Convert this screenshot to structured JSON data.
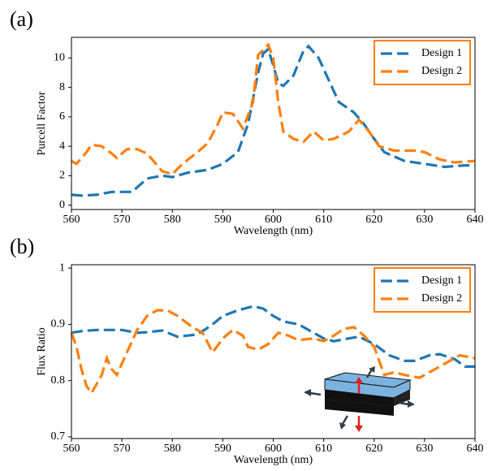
{
  "chart_data": [
    {
      "type": "line",
      "panel_label": "(a)",
      "x_label": "Wavelength (nm)",
      "y_label": "Purcell Factor",
      "xlim": [
        560,
        640
      ],
      "xticks": [
        560,
        570,
        580,
        590,
        600,
        610,
        620,
        630,
        640
      ],
      "ylim": [
        -0.3,
        11.4
      ],
      "yticks": [
        0,
        2,
        4,
        6,
        8,
        10
      ],
      "legend": "upper right",
      "series": [
        {
          "name": "Design 1",
          "color": "#1f77b4",
          "x": [
            560,
            562,
            565,
            568,
            572,
            575,
            578,
            580,
            583,
            587,
            590,
            593,
            595,
            597,
            598,
            599,
            600,
            601,
            602,
            604,
            606,
            607,
            609,
            611,
            613,
            616,
            618,
            620,
            622,
            626,
            630,
            634,
            638,
            640
          ],
          "values": [
            0.7,
            0.65,
            0.7,
            0.9,
            0.9,
            1.8,
            2.0,
            1.9,
            2.2,
            2.4,
            2.8,
            3.6,
            5.5,
            9,
            10.3,
            10.6,
            9.5,
            8.3,
            8.1,
            8.8,
            10.5,
            10.8,
            10,
            8.5,
            7,
            6.3,
            5.5,
            4.5,
            3.6,
            3.0,
            2.8,
            2.6,
            2.7,
            2.7
          ]
        },
        {
          "name": "Design 2",
          "color": "#ff7f0e",
          "x": [
            560,
            561,
            563,
            564,
            566,
            568,
            569,
            571,
            573,
            575,
            578,
            580,
            582,
            585,
            587,
            589,
            590,
            592,
            594,
            596,
            597,
            599,
            600,
            601,
            602,
            604,
            606,
            608,
            610,
            612,
            615,
            617,
            619,
            621,
            624,
            628,
            630,
            633,
            636,
            640
          ],
          "values": [
            3.0,
            2.8,
            3.6,
            4.1,
            4.0,
            3.5,
            3.2,
            3.8,
            3.8,
            3.5,
            2.3,
            2.1,
            2.8,
            3.6,
            4.2,
            5.5,
            6.3,
            6.2,
            5.2,
            7,
            10.2,
            10.9,
            10,
            7,
            5,
            4.5,
            4.3,
            5.0,
            4.4,
            4.5,
            5.0,
            5.8,
            5.0,
            4.0,
            3.7,
            3.7,
            3.6,
            3.1,
            2.9,
            3.0
          ]
        }
      ]
    },
    {
      "type": "line",
      "panel_label": "(b)",
      "x_label": "Wavelength (nm)",
      "y_label": "Flux Ratio",
      "xlim": [
        560,
        640
      ],
      "xticks": [
        560,
        570,
        580,
        590,
        600,
        610,
        620,
        630,
        640
      ],
      "ylim": [
        0.697,
        1.006
      ],
      "yticks": [
        0.7,
        0.8,
        0.9,
        1
      ],
      "legend": "upper right",
      "series": [
        {
          "name": "Design 1",
          "color": "#1f77b4",
          "x": [
            560,
            562,
            565,
            570,
            573,
            575,
            578,
            581,
            585,
            588,
            590,
            593,
            596,
            598,
            600,
            602,
            605,
            608,
            610,
            612,
            615,
            617,
            620,
            623,
            626,
            628,
            631,
            633,
            636,
            638,
            640
          ],
          "values": [
            0.885,
            0.888,
            0.89,
            0.89,
            0.885,
            0.886,
            0.889,
            0.878,
            0.882,
            0.9,
            0.915,
            0.925,
            0.932,
            0.928,
            0.915,
            0.905,
            0.9,
            0.885,
            0.875,
            0.87,
            0.875,
            0.878,
            0.865,
            0.845,
            0.835,
            0.835,
            0.845,
            0.847,
            0.838,
            0.825,
            0.825
          ]
        },
        {
          "name": "Design 2",
          "color": "#ff7f0e",
          "x": [
            560,
            561,
            562,
            563,
            564,
            566,
            567,
            568,
            569,
            571,
            573,
            575,
            577,
            579,
            581,
            584,
            586,
            588,
            590,
            592,
            594,
            595,
            597,
            599,
            601,
            603,
            605,
            608,
            610,
            612,
            614,
            616,
            618,
            620,
            622,
            624,
            626,
            629,
            632,
            635,
            637,
            640
          ],
          "values": [
            0.885,
            0.86,
            0.82,
            0.79,
            0.778,
            0.81,
            0.84,
            0.82,
            0.81,
            0.85,
            0.89,
            0.915,
            0.925,
            0.925,
            0.915,
            0.895,
            0.885,
            0.85,
            0.875,
            0.89,
            0.88,
            0.86,
            0.855,
            0.865,
            0.885,
            0.88,
            0.872,
            0.875,
            0.87,
            0.88,
            0.892,
            0.895,
            0.88,
            0.86,
            0.81,
            0.815,
            0.81,
            0.805,
            0.82,
            0.835,
            0.845,
            0.84
          ]
        }
      ]
    }
  ]
}
